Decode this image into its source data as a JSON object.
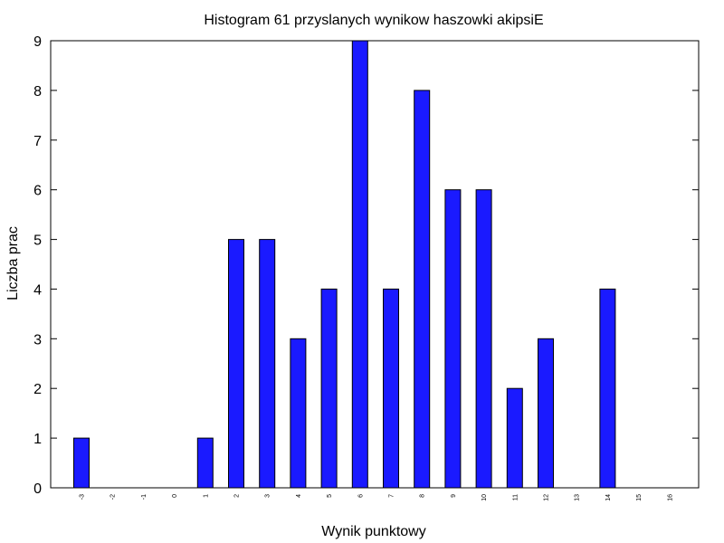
{
  "chart_data": {
    "type": "bar",
    "title": "Histogram 61 przyslanych wynikow haszowki akipsiE",
    "xlabel": "Wynik punktowy",
    "ylabel": "Liczba prac",
    "categories": [
      "-3",
      "-2",
      "-1",
      "0",
      "1",
      "2",
      "3",
      "4",
      "5",
      "6",
      "7",
      "8",
      "9",
      "10",
      "11",
      "12",
      "13",
      "14",
      "15",
      "16"
    ],
    "values": [
      1,
      0,
      0,
      0,
      1,
      5,
      5,
      3,
      4,
      9,
      4,
      8,
      6,
      6,
      2,
      3,
      0,
      4,
      0,
      0
    ],
    "ylim": [
      0,
      9
    ],
    "yticks": [
      "0",
      "1",
      "2",
      "3",
      "4",
      "5",
      "6",
      "7",
      "8",
      "9"
    ],
    "grid": false,
    "bar_color": "#1a1aff"
  }
}
